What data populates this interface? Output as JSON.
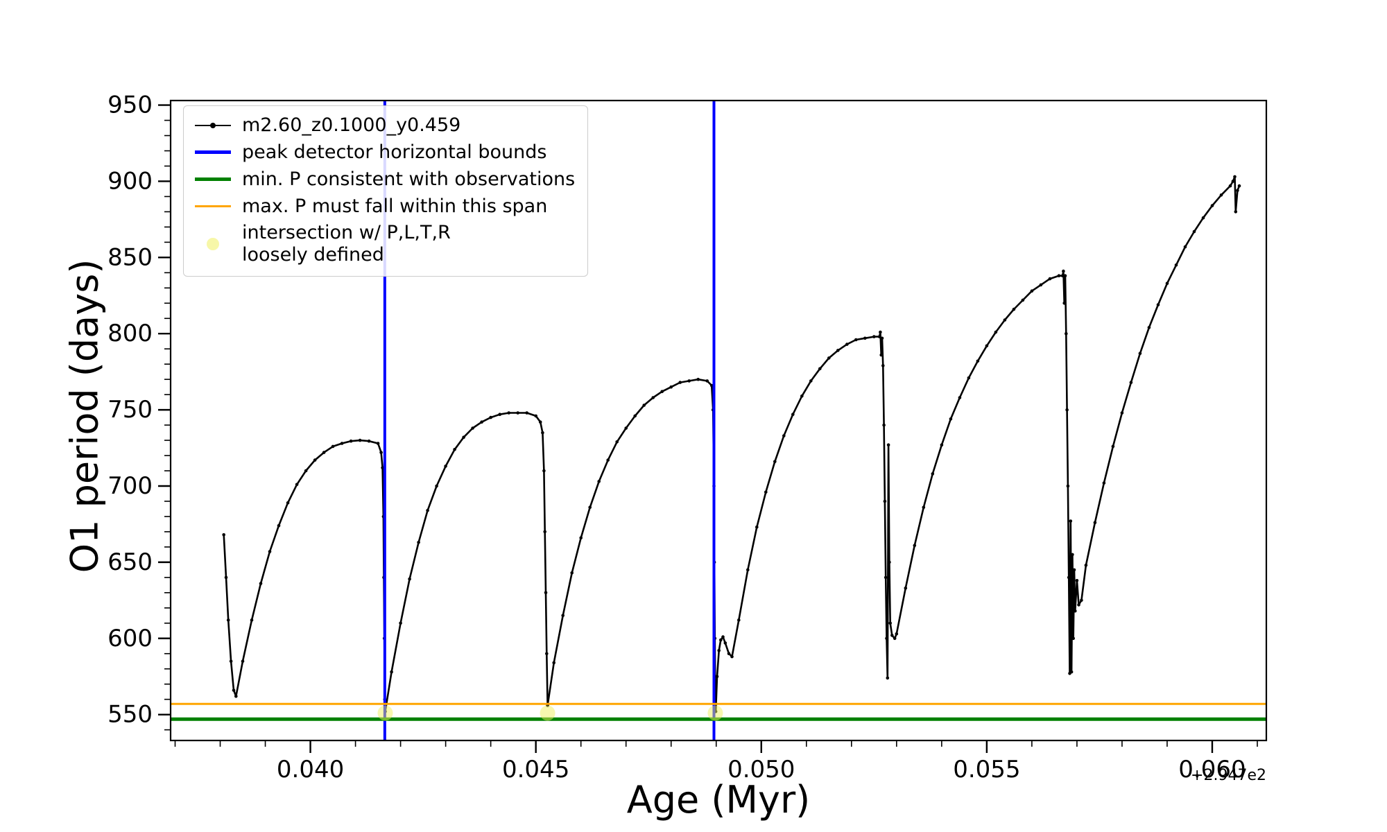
{
  "chart_data": {
    "type": "line",
    "title": "",
    "xlabel": "Age (Myr)",
    "ylabel": "O1 period (days)",
    "x_offset_text": "+2.947e2",
    "xlim": [
      0.0369,
      0.0612
    ],
    "ylim": [
      533,
      953
    ],
    "grid": false,
    "legend_position": "upper-left",
    "xticks": [
      0.04,
      0.045,
      0.05,
      0.055,
      0.06
    ],
    "xtick_labels": [
      "0.040",
      "0.045",
      "0.050",
      "0.055",
      "0.060"
    ],
    "yticks": [
      550,
      600,
      650,
      700,
      750,
      800,
      850,
      900,
      950
    ],
    "ytick_labels": [
      "550",
      "600",
      "650",
      "700",
      "750",
      "800",
      "850",
      "900",
      "950"
    ],
    "x_minor_step": 0.001,
    "y_minor_step": 10,
    "series": [
      {
        "name": "m2.60_z0.1000_y0.459",
        "color": "#000000",
        "points": [
          [
            0.03808,
            668
          ],
          [
            0.03813,
            640
          ],
          [
            0.03818,
            612
          ],
          [
            0.03824,
            585
          ],
          [
            0.0383,
            566
          ],
          [
            0.03835,
            562
          ],
          [
            0.0385,
            585
          ],
          [
            0.0387,
            612
          ],
          [
            0.0389,
            636
          ],
          [
            0.0391,
            657
          ],
          [
            0.0393,
            674
          ],
          [
            0.0395,
            689
          ],
          [
            0.0397,
            701
          ],
          [
            0.0399,
            710
          ],
          [
            0.0401,
            717
          ],
          [
            0.0403,
            722
          ],
          [
            0.0405,
            726
          ],
          [
            0.0407,
            728
          ],
          [
            0.0409,
            729.5
          ],
          [
            0.0411,
            730
          ],
          [
            0.0413,
            729.5
          ],
          [
            0.0415,
            728
          ],
          [
            0.04157,
            722
          ],
          [
            0.0416,
            712
          ],
          [
            0.04162,
            680
          ],
          [
            0.04163,
            640
          ],
          [
            0.04164,
            600
          ],
          [
            0.04165,
            560
          ],
          [
            0.04166,
            552
          ],
          [
            0.0418,
            578
          ],
          [
            0.042,
            610
          ],
          [
            0.0422,
            639
          ],
          [
            0.0424,
            663
          ],
          [
            0.0426,
            684
          ],
          [
            0.0428,
            700
          ],
          [
            0.043,
            713
          ],
          [
            0.0432,
            724
          ],
          [
            0.0434,
            732
          ],
          [
            0.0436,
            738
          ],
          [
            0.0438,
            742
          ],
          [
            0.044,
            745
          ],
          [
            0.0442,
            747
          ],
          [
            0.0444,
            748
          ],
          [
            0.0446,
            748
          ],
          [
            0.0448,
            748
          ],
          [
            0.045,
            746
          ],
          [
            0.0451,
            742
          ],
          [
            0.04515,
            735
          ],
          [
            0.04518,
            710
          ],
          [
            0.0452,
            670
          ],
          [
            0.04522,
            630
          ],
          [
            0.04524,
            590
          ],
          [
            0.04526,
            556
          ],
          [
            0.0454,
            584
          ],
          [
            0.0456,
            615
          ],
          [
            0.0458,
            643
          ],
          [
            0.046,
            666
          ],
          [
            0.0462,
            686
          ],
          [
            0.0464,
            703
          ],
          [
            0.0466,
            717
          ],
          [
            0.0468,
            729
          ],
          [
            0.047,
            738
          ],
          [
            0.0472,
            746
          ],
          [
            0.0474,
            753
          ],
          [
            0.0476,
            758
          ],
          [
            0.0478,
            762
          ],
          [
            0.048,
            765
          ],
          [
            0.0482,
            768
          ],
          [
            0.0484,
            769
          ],
          [
            0.0486,
            770
          ],
          [
            0.0488,
            769
          ],
          [
            0.0489,
            766
          ],
          [
            0.04893,
            750
          ],
          [
            0.04895,
            700
          ],
          [
            0.04896,
            650
          ],
          [
            0.04897,
            600
          ],
          [
            0.04898,
            560
          ],
          [
            0.04899,
            552
          ],
          [
            0.04902,
            575
          ],
          [
            0.04906,
            592
          ],
          [
            0.0491,
            599
          ],
          [
            0.04915,
            601
          ],
          [
            0.0492,
            597
          ],
          [
            0.04928,
            590
          ],
          [
            0.04935,
            588
          ],
          [
            0.0495,
            612
          ],
          [
            0.0497,
            645
          ],
          [
            0.0499,
            673
          ],
          [
            0.0501,
            696
          ],
          [
            0.0503,
            716
          ],
          [
            0.0505,
            733
          ],
          [
            0.0507,
            747
          ],
          [
            0.0509,
            759
          ],
          [
            0.0511,
            769
          ],
          [
            0.0513,
            777
          ],
          [
            0.0515,
            784
          ],
          [
            0.0517,
            789
          ],
          [
            0.0519,
            793
          ],
          [
            0.0521,
            796
          ],
          [
            0.0523,
            797
          ],
          [
            0.0525,
            798
          ],
          [
            0.05262,
            798
          ],
          [
            0.05264,
            801
          ],
          [
            0.05266,
            786
          ],
          [
            0.05268,
            797
          ],
          [
            0.0527,
            779
          ],
          [
            0.05272,
            740
          ],
          [
            0.05274,
            690
          ],
          [
            0.05276,
            640
          ],
          [
            0.05278,
            600
          ],
          [
            0.0528,
            574
          ],
          [
            0.05282,
            727
          ],
          [
            0.05284,
            650
          ],
          [
            0.05286,
            610
          ],
          [
            0.0529,
            602
          ],
          [
            0.05296,
            600
          ],
          [
            0.053,
            603
          ],
          [
            0.0532,
            633
          ],
          [
            0.0534,
            661
          ],
          [
            0.0536,
            686
          ],
          [
            0.0538,
            708
          ],
          [
            0.054,
            727
          ],
          [
            0.0542,
            744
          ],
          [
            0.0544,
            758
          ],
          [
            0.0546,
            771
          ],
          [
            0.0548,
            782
          ],
          [
            0.055,
            792
          ],
          [
            0.0552,
            801
          ],
          [
            0.0554,
            809
          ],
          [
            0.0556,
            816
          ],
          [
            0.0558,
            822
          ],
          [
            0.056,
            828
          ],
          [
            0.0562,
            832
          ],
          [
            0.0564,
            836
          ],
          [
            0.0566,
            838
          ],
          [
            0.05668,
            838
          ],
          [
            0.0567,
            841
          ],
          [
            0.05672,
            820
          ],
          [
            0.05674,
            838
          ],
          [
            0.05676,
            800
          ],
          [
            0.05678,
            750
          ],
          [
            0.0568,
            700
          ],
          [
            0.05682,
            640
          ],
          [
            0.05684,
            577
          ],
          [
            0.05686,
            677
          ],
          [
            0.05688,
            578
          ],
          [
            0.0569,
            655
          ],
          [
            0.05692,
            600
          ],
          [
            0.05694,
            645
          ],
          [
            0.05696,
            618
          ],
          [
            0.057,
            638
          ],
          [
            0.05704,
            622
          ],
          [
            0.0571,
            625
          ],
          [
            0.0572,
            648
          ],
          [
            0.0574,
            676
          ],
          [
            0.0576,
            702
          ],
          [
            0.0578,
            726
          ],
          [
            0.058,
            748
          ],
          [
            0.0582,
            768
          ],
          [
            0.0584,
            787
          ],
          [
            0.0586,
            804
          ],
          [
            0.0588,
            819
          ],
          [
            0.059,
            833
          ],
          [
            0.0592,
            845
          ],
          [
            0.0594,
            857
          ],
          [
            0.0596,
            867
          ],
          [
            0.0598,
            876
          ],
          [
            0.06,
            884
          ],
          [
            0.0602,
            891
          ],
          [
            0.0604,
            897
          ],
          [
            0.06046,
            900
          ],
          [
            0.0605,
            903
          ],
          [
            0.06052,
            880
          ],
          [
            0.06056,
            894
          ],
          [
            0.0606,
            897
          ]
        ]
      }
    ],
    "vlines": {
      "label": "peak detector horizontal bounds",
      "color": "#0000ff",
      "x": [
        0.04165,
        0.04895
      ]
    },
    "hlines": [
      {
        "label": "min. P consistent with observations",
        "color": "#008000",
        "y": 547,
        "lw": 5
      },
      {
        "label": "max. P must fall within this span",
        "color": "#ffa500",
        "y": 557,
        "lw": 3
      }
    ],
    "scatter": {
      "label": "intersection w/ P,L,T,R\nloosely defined",
      "color": "#f0f060",
      "points": [
        [
          0.04166,
          551
        ],
        [
          0.04526,
          551
        ],
        [
          0.04898,
          551
        ]
      ]
    },
    "legend": [
      {
        "swatch": "line-marker",
        "color": "#000000",
        "lw": 2,
        "label": "m2.60_z0.1000_y0.459"
      },
      {
        "swatch": "line",
        "color": "#0000ff",
        "lw": 5,
        "label": "peak detector horizontal bounds"
      },
      {
        "swatch": "line",
        "color": "#008000",
        "lw": 5,
        "label": "min. P consistent with observations"
      },
      {
        "swatch": "line",
        "color": "#ffa500",
        "lw": 3,
        "label": "max. P must fall within this span"
      },
      {
        "swatch": "dot",
        "color": "#f0f060",
        "lw": 0,
        "label": "intersection w/ P,L,T,R\nloosely defined"
      }
    ]
  }
}
